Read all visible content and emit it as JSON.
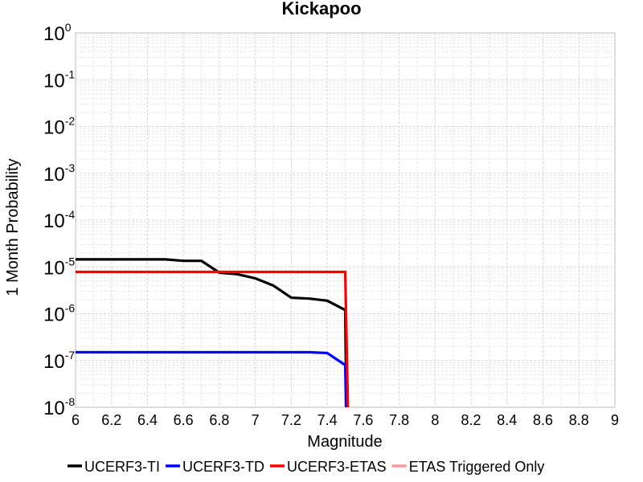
{
  "chart_data": {
    "type": "line",
    "title": "Kickapoo",
    "xlabel": "Magnitude",
    "ylabel": "1 Month Probability",
    "xlim": [
      6,
      9
    ],
    "ylim": [
      1e-08,
      1
    ],
    "yscale": "log",
    "grid": true,
    "legend_position": "bottom",
    "x_ticks": [
      "6",
      "6.2",
      "6.4",
      "6.6",
      "6.8",
      "7",
      "7.2",
      "7.4",
      "7.6",
      "7.8",
      "8",
      "8.2",
      "8.4",
      "8.6",
      "8.8",
      "9"
    ],
    "y_ticks": [
      {
        "base": "10",
        "exp": "0"
      },
      {
        "base": "10",
        "exp": "-1"
      },
      {
        "base": "10",
        "exp": "-2"
      },
      {
        "base": "10",
        "exp": "-3"
      },
      {
        "base": "10",
        "exp": "-4"
      },
      {
        "base": "10",
        "exp": "-5"
      },
      {
        "base": "10",
        "exp": "-6"
      },
      {
        "base": "10",
        "exp": "-7"
      },
      {
        "base": "10",
        "exp": "-8"
      }
    ],
    "series": [
      {
        "name": "UCERF3-TI",
        "color": "#000000",
        "x": [
          6.0,
          6.1,
          6.2,
          6.3,
          6.4,
          6.5,
          6.6,
          6.7,
          6.8,
          6.9,
          7.0,
          7.1,
          7.2,
          7.3,
          7.4,
          7.5,
          7.51
        ],
        "y": [
          1.45e-05,
          1.45e-05,
          1.45e-05,
          1.45e-05,
          1.45e-05,
          1.45e-05,
          1.35e-05,
          1.35e-05,
          7.5e-06,
          7e-06,
          5.7e-06,
          4e-06,
          2.2e-06,
          2.1e-06,
          1.9e-06,
          1.2e-06,
          1e-09
        ]
      },
      {
        "name": "UCERF3-TD",
        "color": "#0000ff",
        "x": [
          6.0,
          6.1,
          6.2,
          6.3,
          6.4,
          6.5,
          6.6,
          6.7,
          6.8,
          6.9,
          7.0,
          7.1,
          7.2,
          7.3,
          7.4,
          7.5,
          7.51
        ],
        "y": [
          1.5e-07,
          1.5e-07,
          1.5e-07,
          1.5e-07,
          1.5e-07,
          1.5e-07,
          1.5e-07,
          1.5e-07,
          1.5e-07,
          1.5e-07,
          1.5e-07,
          1.5e-07,
          1.5e-07,
          1.5e-07,
          1.45e-07,
          8e-08,
          1e-09
        ]
      },
      {
        "name": "UCERF3-ETAS",
        "color": "#ff0000",
        "x": [
          6.0,
          6.2,
          6.4,
          6.6,
          6.8,
          7.0,
          7.2,
          7.4,
          7.5,
          7.52
        ],
        "y": [
          7.8e-06,
          7.8e-06,
          7.8e-06,
          7.8e-06,
          7.8e-06,
          7.8e-06,
          7.8e-06,
          7.8e-06,
          7.8e-06,
          1e-09
        ]
      },
      {
        "name": "ETAS Triggered Only",
        "color": "#ff9999",
        "x": [],
        "y": []
      }
    ]
  }
}
